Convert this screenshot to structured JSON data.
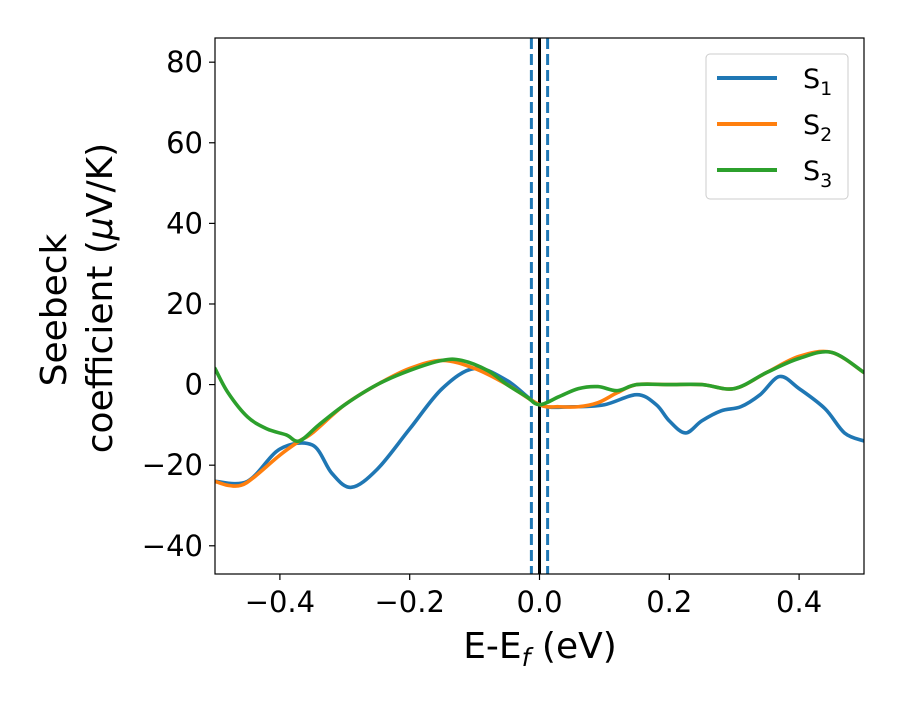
{
  "chart_data": {
    "type": "line",
    "title": "",
    "xlabel": {
      "main": "E-E",
      "sub": "f",
      "tail": " (eV)"
    },
    "ylabel": {
      "line1": "Seebeck",
      "line2_prefix": "coefficient  (",
      "mu": "μ",
      "line2_suffix": "V/K)"
    },
    "xlim": [
      -0.5,
      0.5
    ],
    "ylim": [
      -47,
      86
    ],
    "x_ticks": [
      -0.4,
      -0.2,
      0.0,
      0.2,
      0.4
    ],
    "x_tick_labels": [
      "−0.4",
      "−0.2",
      "0.0",
      "0.2",
      "0.4"
    ],
    "y_ticks": [
      -40,
      -20,
      0,
      20,
      40,
      60,
      80
    ],
    "y_tick_labels": [
      "−40",
      "−20",
      "0",
      "20",
      "40",
      "60",
      "80"
    ],
    "grid": false,
    "legend_position": "top-right",
    "vertical_lines": [
      {
        "x": 0.0,
        "style": "solid",
        "color": "#000000"
      },
      {
        "x": -0.0125,
        "style": "dashed",
        "color": "#1f77b4"
      },
      {
        "x": 0.0125,
        "style": "dashed",
        "color": "#1f77b4"
      }
    ],
    "series": [
      {
        "name": "S",
        "sub": "1",
        "color": "#1f77b4",
        "x": [
          -0.5,
          -0.45,
          -0.4,
          -0.35,
          -0.32,
          -0.29,
          -0.25,
          -0.2,
          -0.15,
          -0.1,
          -0.05,
          0.0,
          0.05,
          0.1,
          0.15,
          0.18,
          0.2,
          0.225,
          0.25,
          0.28,
          0.31,
          0.34,
          0.37,
          0.4,
          0.44,
          0.47,
          0.5
        ],
        "values": [
          -24,
          -24,
          -16,
          -15,
          -22,
          -25.5,
          -21,
          -11,
          -1,
          4,
          1,
          -5,
          -5.5,
          -5,
          -2.5,
          -5,
          -9,
          -12,
          -9,
          -6.5,
          -5.5,
          -2.5,
          2,
          -1,
          -6,
          -12,
          -14
        ]
      },
      {
        "name": "S",
        "sub": "2",
        "color": "#ff7f0e",
        "x": [
          -0.5,
          -0.48,
          -0.46,
          -0.44,
          -0.4,
          -0.37,
          -0.35,
          -0.3,
          -0.25,
          -0.2,
          -0.15,
          -0.1,
          -0.05,
          0.0,
          0.03,
          0.06,
          0.09,
          0.12,
          0.15,
          0.2,
          0.25,
          0.3,
          0.35,
          0.4,
          0.45,
          0.5
        ],
        "values": [
          -24,
          -25,
          -25,
          -23,
          -17.5,
          -14,
          -12,
          -5,
          0,
          4,
          6,
          4,
          0,
          -5,
          -5.5,
          -5.5,
          -4.5,
          -2,
          0,
          0,
          0,
          -1,
          3,
          7,
          8,
          3
        ]
      },
      {
        "name": "S",
        "sub": "3",
        "color": "#2ca02c",
        "x": [
          -0.5,
          -0.48,
          -0.45,
          -0.42,
          -0.39,
          -0.37,
          -0.34,
          -0.3,
          -0.25,
          -0.2,
          -0.15,
          -0.12,
          -0.08,
          -0.05,
          -0.02,
          0.0,
          0.03,
          0.06,
          0.09,
          0.12,
          0.15,
          0.2,
          0.25,
          0.3,
          0.35,
          0.4,
          0.45,
          0.5
        ],
        "values": [
          4,
          -2,
          -8,
          -11,
          -12.5,
          -14,
          -10,
          -5,
          0,
          3.5,
          6,
          6,
          3.5,
          0,
          -3,
          -5,
          -3,
          -1,
          -0.5,
          -1.5,
          0,
          0,
          0,
          -1,
          3,
          6.5,
          8,
          3
        ]
      }
    ]
  }
}
